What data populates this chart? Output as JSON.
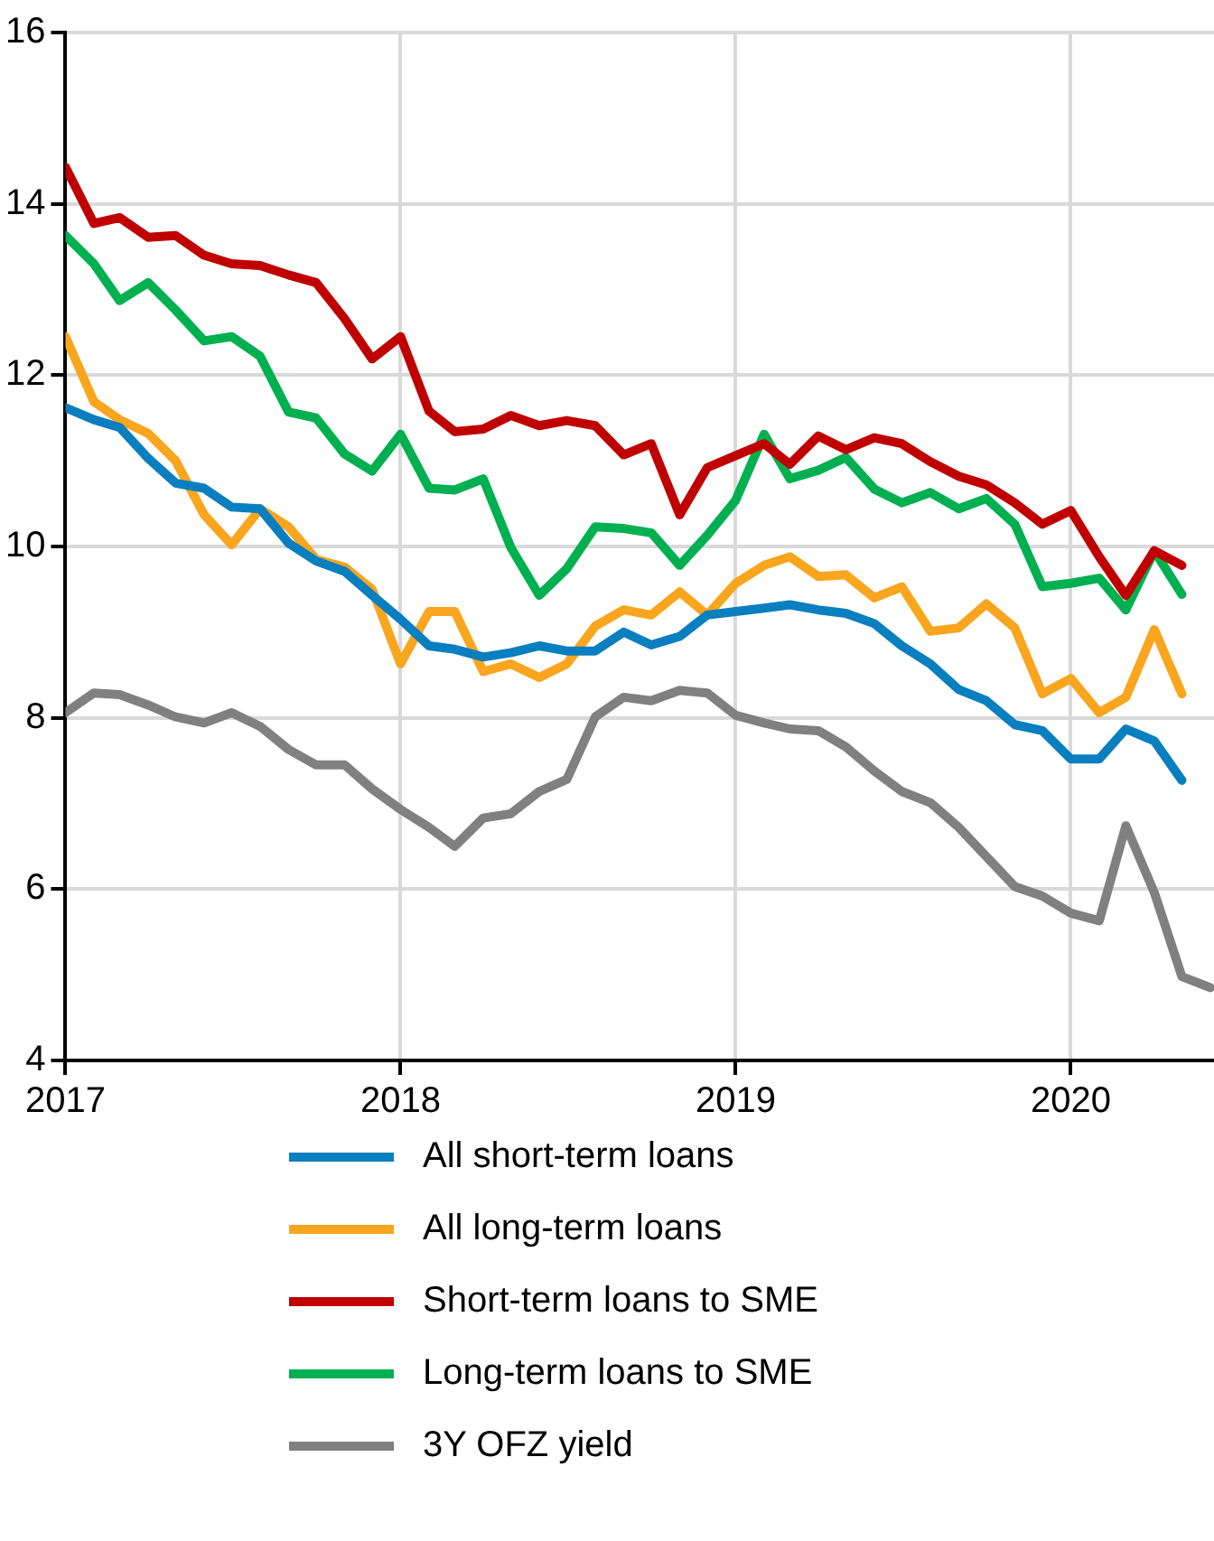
{
  "chart_data": {
    "type": "line",
    "x": [
      "2017-01",
      "2017-02",
      "2017-03",
      "2017-04",
      "2017-05",
      "2017-06",
      "2017-07",
      "2017-08",
      "2017-09",
      "2017-10",
      "2017-11",
      "2017-12",
      "2018-01",
      "2018-02",
      "2018-03",
      "2018-04",
      "2018-05",
      "2018-06",
      "2018-07",
      "2018-08",
      "2018-09",
      "2018-10",
      "2018-11",
      "2018-12",
      "2019-01",
      "2019-02",
      "2019-03",
      "2019-04",
      "2019-05",
      "2019-06",
      "2019-07",
      "2019-08",
      "2019-09",
      "2019-10",
      "2019-11",
      "2019-12",
      "2020-01",
      "2020-02",
      "2020-03",
      "2020-04",
      "2020-05",
      "2020-06"
    ],
    "series": [
      {
        "name": "All short-term loans",
        "color": "#0a7fbf",
        "values": [
          11.62,
          11.48,
          11.39,
          11.03,
          10.74,
          10.68,
          10.46,
          10.44,
          10.04,
          9.83,
          9.71,
          9.43,
          9.15,
          8.84,
          8.8,
          8.71,
          8.76,
          8.84,
          8.78,
          8.78,
          9.0,
          8.85,
          8.95,
          9.2,
          9.24,
          9.28,
          9.32,
          9.26,
          9.22,
          9.1,
          8.84,
          8.63,
          8.33,
          8.2,
          7.92,
          7.85,
          7.52,
          7.52,
          7.87,
          7.73,
          7.27,
          null
        ]
      },
      {
        "name": "All long-term loans",
        "color": "#f9a51e",
        "values": [
          12.45,
          11.69,
          11.48,
          11.32,
          11.0,
          10.37,
          10.02,
          10.44,
          10.23,
          9.85,
          9.76,
          9.5,
          8.63,
          9.24,
          9.24,
          8.54,
          8.63,
          8.47,
          8.63,
          9.07,
          9.26,
          9.2,
          9.47,
          9.2,
          9.57,
          9.78,
          9.88,
          9.65,
          9.67,
          9.4,
          9.53,
          9.01,
          9.05,
          9.33,
          9.05,
          8.28,
          8.46,
          8.06,
          8.24,
          9.03,
          8.28,
          null
        ]
      },
      {
        "name": "Short-term loans to SME",
        "color": "#c00000",
        "values": [
          14.43,
          13.77,
          13.84,
          13.61,
          13.63,
          13.4,
          13.3,
          13.28,
          13.17,
          13.08,
          12.66,
          12.19,
          12.45,
          11.58,
          11.34,
          11.37,
          11.53,
          11.41,
          11.47,
          11.41,
          11.07,
          11.2,
          10.37,
          10.92,
          11.06,
          11.2,
          10.96,
          11.29,
          11.13,
          11.27,
          11.2,
          10.99,
          10.82,
          10.72,
          10.51,
          10.26,
          10.42,
          9.88,
          9.43,
          9.95,
          9.78,
          null
        ]
      },
      {
        "name": "Long-term loans to SME",
        "color": "#00b050",
        "values": [
          13.63,
          13.3,
          12.87,
          13.08,
          12.76,
          12.4,
          12.45,
          12.22,
          11.57,
          11.5,
          11.08,
          10.88,
          11.31,
          10.68,
          10.66,
          10.79,
          9.99,
          9.43,
          9.74,
          10.23,
          10.21,
          10.16,
          9.78,
          10.13,
          10.54,
          11.31,
          10.79,
          10.89,
          11.04,
          10.67,
          10.51,
          10.63,
          10.44,
          10.56,
          10.26,
          9.53,
          9.57,
          9.63,
          9.26,
          9.95,
          9.44,
          null
        ]
      },
      {
        "name": "3Y OFZ yield",
        "color": "#808080",
        "values": [
          8.06,
          8.29,
          8.27,
          8.15,
          8.01,
          7.94,
          8.06,
          7.9,
          7.63,
          7.45,
          7.45,
          7.17,
          6.93,
          6.72,
          6.5,
          6.83,
          6.88,
          7.14,
          7.28,
          8.01,
          8.24,
          8.2,
          8.32,
          8.29,
          8.03,
          7.94,
          7.87,
          7.85,
          7.66,
          7.38,
          7.14,
          7.01,
          6.72,
          6.38,
          6.03,
          5.92,
          5.72,
          5.63,
          6.74,
          5.96,
          4.98,
          4.85
        ]
      }
    ],
    "xlim": [
      "2017-01",
      "2020-06-05"
    ],
    "xticks": [
      {
        "value": "2017-01",
        "label": "2017"
      },
      {
        "value": "2018-01",
        "label": "2018"
      },
      {
        "value": "2019-01",
        "label": "2019"
      },
      {
        "value": "2020-01",
        "label": "2020"
      }
    ],
    "ylim": [
      4,
      16
    ],
    "yticks": [
      4,
      6,
      8,
      10,
      12,
      14,
      16
    ],
    "grid": true,
    "legend": "bottom",
    "marker": "none",
    "line_style": "solid"
  }
}
